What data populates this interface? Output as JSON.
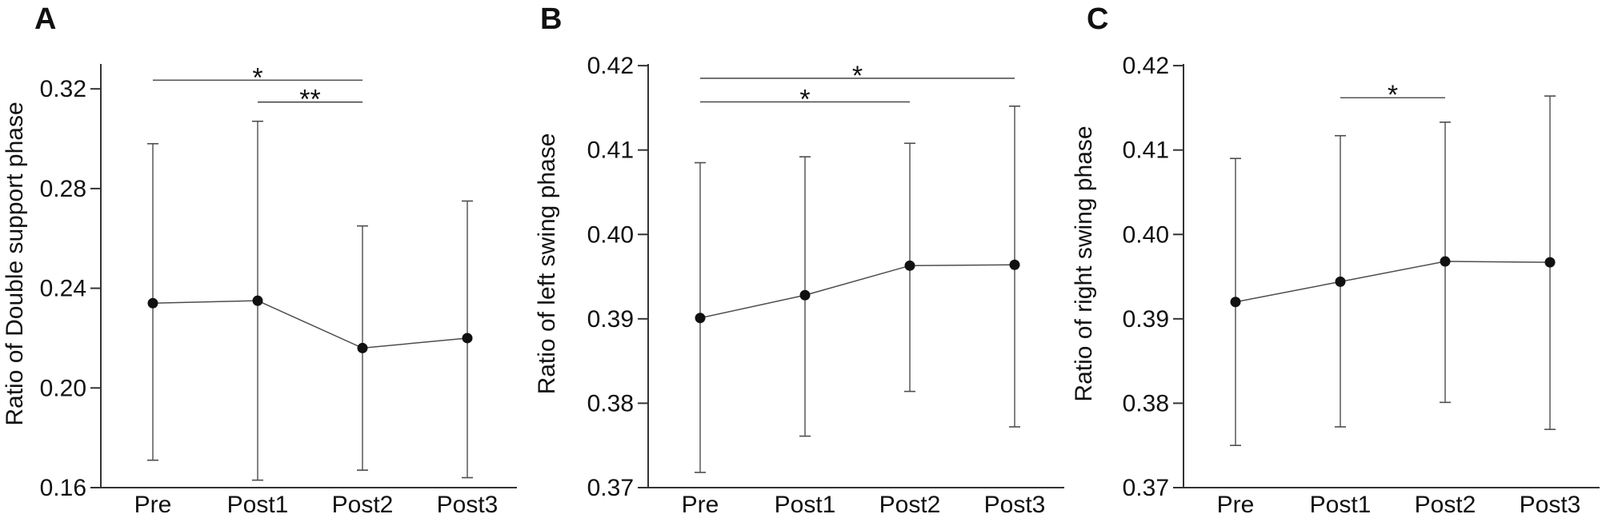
{
  "figure": {
    "background": "#ffffff",
    "text_color": "#111111",
    "axis_color": "#333333",
    "line_color": "#4d4d4d",
    "error_color": "#4d4d4d",
    "marker_color": "#111111"
  },
  "chart_data": [
    {
      "type": "line",
      "panel_label": "A",
      "ylabel": "Ratio of Double support phase",
      "categories": [
        "Pre",
        "Post1",
        "Post2",
        "Post3"
      ],
      "series": [
        {
          "name": "mean",
          "values": [
            0.234,
            0.235,
            0.216,
            0.22
          ]
        }
      ],
      "error_upper": [
        0.298,
        0.307,
        0.265,
        0.275
      ],
      "error_lower": [
        0.171,
        0.163,
        0.167,
        0.164
      ],
      "ylim": [
        0.16,
        0.33
      ],
      "yticks": [
        0.16,
        0.2,
        0.24,
        0.28,
        0.32
      ],
      "ytick_labels": [
        "0.16",
        "0.20",
        "0.24",
        "0.28",
        "0.32"
      ],
      "grid": false,
      "legend": "none",
      "significance": [
        {
          "from": "Pre",
          "to": "Post2",
          "label": "*",
          "y": 0.3235
        },
        {
          "from": "Post1",
          "to": "Post2",
          "label": "**",
          "y": 0.3147
        }
      ]
    },
    {
      "type": "line",
      "panel_label": "B",
      "ylabel": "Ratio of left swing phase",
      "categories": [
        "Pre",
        "Post1",
        "Post2",
        "Post3"
      ],
      "series": [
        {
          "name": "mean",
          "values": [
            0.3901,
            0.3928,
            0.3963,
            0.3964
          ]
        }
      ],
      "error_upper": [
        0.4085,
        0.4092,
        0.4108,
        0.4152
      ],
      "error_lower": [
        0.3718,
        0.3761,
        0.3814,
        0.3772
      ],
      "ylim": [
        0.37,
        0.4202
      ],
      "yticks": [
        0.37,
        0.38,
        0.39,
        0.4,
        0.41,
        0.42
      ],
      "ytick_labels": [
        "0.37",
        "0.38",
        "0.39",
        "0.40",
        "0.41",
        "0.42"
      ],
      "grid": false,
      "legend": "none",
      "significance": [
        {
          "from": "Pre",
          "to": "Post3",
          "label": "*",
          "y": 0.4185
        },
        {
          "from": "Pre",
          "to": "Post2",
          "label": "*",
          "y": 0.4157
        }
      ]
    },
    {
      "type": "line",
      "panel_label": "C",
      "ylabel": "Ratio of right swing phase",
      "categories": [
        "Pre",
        "Post1",
        "Post2",
        "Post3"
      ],
      "series": [
        {
          "name": "mean",
          "values": [
            0.392,
            0.3944,
            0.3968,
            0.3967
          ]
        }
      ],
      "error_upper": [
        0.409,
        0.4117,
        0.4133,
        0.4164
      ],
      "error_lower": [
        0.375,
        0.3772,
        0.3801,
        0.3769
      ],
      "ylim": [
        0.37,
        0.4202
      ],
      "yticks": [
        0.37,
        0.38,
        0.39,
        0.4,
        0.41,
        0.42
      ],
      "ytick_labels": [
        "0.37",
        "0.38",
        "0.39",
        "0.40",
        "0.41",
        "0.42"
      ],
      "grid": false,
      "legend": "none",
      "significance": [
        {
          "from": "Post1",
          "to": "Post2",
          "label": "*",
          "y": 0.4162
        }
      ]
    }
  ]
}
